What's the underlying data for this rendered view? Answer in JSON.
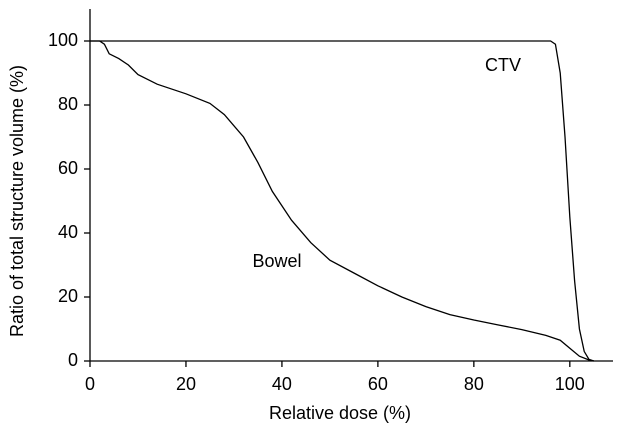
{
  "chart_data": {
    "type": "line",
    "x_label": "Relative dose (%)",
    "y_label": "Ratio of total structure volume (%)",
    "xlim": [
      0,
      109
    ],
    "ylim": [
      0,
      110
    ],
    "xticks": [
      0,
      20,
      40,
      60,
      80,
      100
    ],
    "yticks": [
      0,
      20,
      40,
      60,
      80,
      100
    ],
    "grid": false,
    "series": [
      {
        "name": "CTV",
        "color": "#000000",
        "x": [
          0,
          96,
          97,
          98,
          99,
          100,
          101,
          102,
          103,
          104,
          105
        ],
        "values": [
          100,
          100,
          99,
          90,
          70,
          45,
          25,
          10,
          3,
          0.5,
          0
        ]
      },
      {
        "name": "Bowel",
        "color": "#000000",
        "x": [
          0,
          2,
          3,
          4,
          6,
          8,
          10,
          14,
          20,
          25,
          28,
          32,
          35,
          38,
          42,
          46,
          50,
          55,
          60,
          65,
          70,
          75,
          80,
          85,
          90,
          95,
          98,
          100,
          102,
          104,
          105
        ],
        "values": [
          100,
          100,
          99,
          96,
          94.5,
          92.5,
          89.5,
          86.5,
          83.5,
          80.5,
          77,
          70,
          62,
          53,
          44,
          37,
          31.5,
          27.5,
          23.5,
          20,
          17,
          14.5,
          12.8,
          11.3,
          9.8,
          8,
          6.5,
          4,
          1.5,
          0.3,
          0
        ]
      }
    ]
  }
}
